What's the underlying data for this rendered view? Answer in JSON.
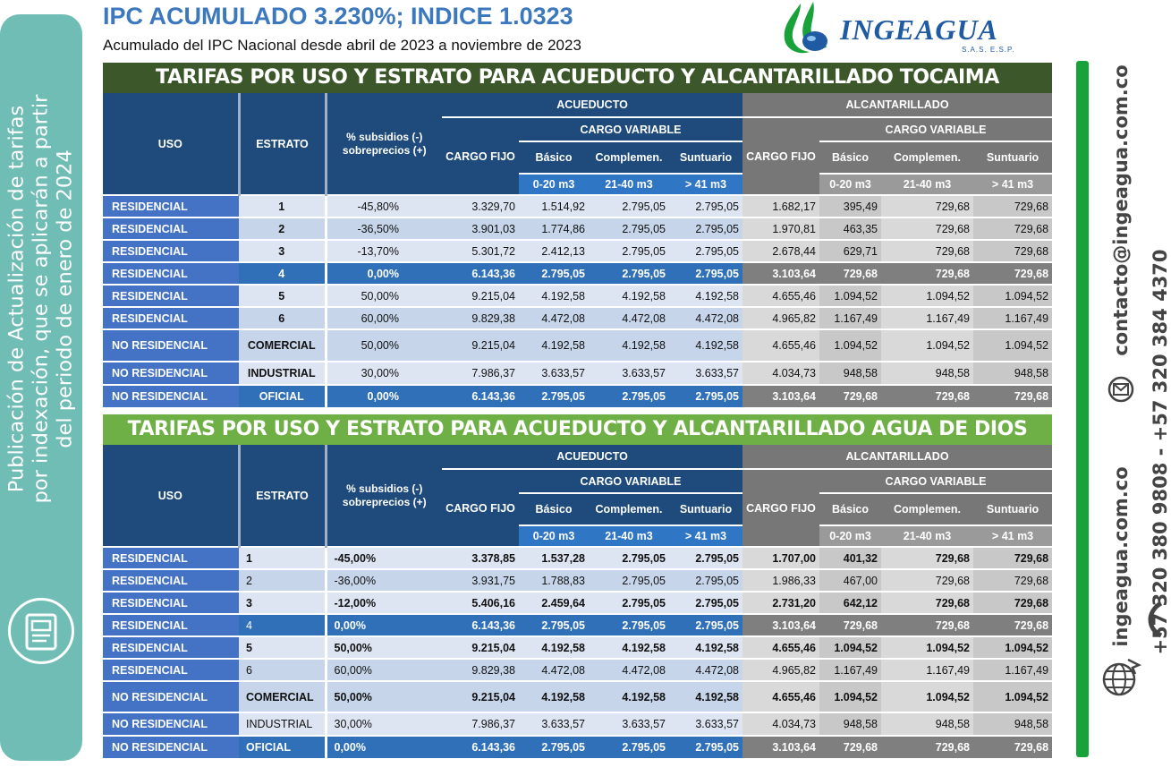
{
  "header": {
    "title": "IPC ACUMULADO 3.230%; INDICE 1.0323",
    "subtitle": "Acumulado del IPC Nacional desde abril de 2023 a noviembre de 2023"
  },
  "logo": {
    "name": "INGEAGUA",
    "tag": "S.A.S.  E.S.P."
  },
  "side_panel": {
    "text_lines": [
      "Publicación de Actualización de tarifas",
      "por indexación, que se aplicarán a partir",
      "del periodo de enero de 2024"
    ]
  },
  "contact": {
    "email": "contacto@ingeagua.com.co",
    "website": "ingeagua.com.co",
    "phones": "+57 320 380 9808 - +57 320 384 4370"
  },
  "colors": {
    "accent_blue": "#3b78be",
    "banner1": "#3c5729",
    "banner2": "#6fb046",
    "side_green": "#17a33a",
    "panel_teal": "#6fbdb4"
  },
  "table_headers": {
    "uso": "USO",
    "estrato": "ESTRATO",
    "subsidios": "% subsidios (-) sobreprecios (+)",
    "acueducto": "ACUEDUCTO",
    "alcantarillado": "ALCANTARILLADO",
    "cargo_variable": "CARGO VARIABLE",
    "cargo_fijo": "CARGO FIJO",
    "basico": "Básico",
    "complemen": "Complemen.",
    "suntuario": "Suntuario",
    "r1": "0-20 m3",
    "r2": "21-40 m3",
    "r3": "> 41 m3"
  },
  "tables": [
    {
      "title": "TARIFAS POR USO Y ESTRATO PARA ACUEDUCTO Y ALCANTARILLADO  TOCAIMA",
      "rows": [
        [
          "RESIDENCIAL",
          "1",
          "-45,80%",
          "3.329,70",
          "1.514,92",
          "2.795,05",
          "2.795,05",
          "1.682,17",
          "395,49",
          "729,68",
          "729,68"
        ],
        [
          "RESIDENCIAL",
          "2",
          "-36,50%",
          "3.901,03",
          "1.774,86",
          "2.795,05",
          "2.795,05",
          "1.970,81",
          "463,35",
          "729,68",
          "729,68"
        ],
        [
          "RESIDENCIAL",
          "3",
          "-13,70%",
          "5.301,72",
          "2.412,13",
          "2.795,05",
          "2.795,05",
          "2.678,44",
          "629,71",
          "729,68",
          "729,68"
        ],
        [
          "RESIDENCIAL",
          "4",
          "0,00%",
          "6.143,36",
          "2.795,05",
          "2.795,05",
          "2.795,05",
          "3.103,64",
          "729,68",
          "729,68",
          "729,68"
        ],
        [
          "RESIDENCIAL",
          "5",
          "50,00%",
          "9.215,04",
          "4.192,58",
          "4.192,58",
          "4.192,58",
          "4.655,46",
          "1.094,52",
          "1.094,52",
          "1.094,52"
        ],
        [
          "RESIDENCIAL",
          "6",
          "60,00%",
          "9.829,38",
          "4.472,08",
          "4.472,08",
          "4.472,08",
          "4.965,82",
          "1.167,49",
          "1.167,49",
          "1.167,49"
        ],
        [
          "NO RESIDENCIAL",
          "COMERCIAL",
          "50,00%",
          "9.215,04",
          "4.192,58",
          "4.192,58",
          "4.192,58",
          "4.655,46",
          "1.094,52",
          "1.094,52",
          "1.094,52"
        ],
        [
          "NO RESIDENCIAL",
          "INDUSTRIAL",
          "30,00%",
          "7.986,37",
          "3.633,57",
          "3.633,57",
          "3.633,57",
          "4.034,73",
          "948,58",
          "948,58",
          "948,58"
        ],
        [
          "NO RESIDENCIAL",
          "OFICIAL",
          "0,00%",
          "6.143,36",
          "2.795,05",
          "2.795,05",
          "2.795,05",
          "3.103,64",
          "729,68",
          "729,68",
          "729,68"
        ]
      ]
    },
    {
      "title": "TARIFAS POR USO Y ESTRATO PARA ACUEDUCTO Y ALCANTARILLADO AGUA DE DIOS",
      "rows": [
        [
          "RESIDENCIAL",
          "1",
          "-45,00%",
          "3.378,85",
          "1.537,28",
          "2.795,05",
          "2.795,05",
          "1.707,00",
          "401,32",
          "729,68",
          "729,68"
        ],
        [
          "RESIDENCIAL",
          "2",
          "-36,00%",
          "3.931,75",
          "1.788,83",
          "2.795,05",
          "2.795,05",
          "1.986,33",
          "467,00",
          "729,68",
          "729,68"
        ],
        [
          "RESIDENCIAL",
          "3",
          "-12,00%",
          "5.406,16",
          "2.459,64",
          "2.795,05",
          "2.795,05",
          "2.731,20",
          "642,12",
          "729,68",
          "729,68"
        ],
        [
          "RESIDENCIAL",
          "4",
          "0,00%",
          "6.143,36",
          "2.795,05",
          "2.795,05",
          "2.795,05",
          "3.103,64",
          "729,68",
          "729,68",
          "729,68"
        ],
        [
          "RESIDENCIAL",
          "5",
          "50,00%",
          "9.215,04",
          "4.192,58",
          "4.192,58",
          "4.192,58",
          "4.655,46",
          "1.094,52",
          "1.094,52",
          "1.094,52"
        ],
        [
          "RESIDENCIAL",
          "6",
          "60,00%",
          "9.829,38",
          "4.472,08",
          "4.472,08",
          "4.472,08",
          "4.965,82",
          "1.167,49",
          "1.167,49",
          "1.167,49"
        ],
        [
          "NO RESIDENCIAL",
          "COMERCIAL",
          "50,00%",
          "9.215,04",
          "4.192,58",
          "4.192,58",
          "4.192,58",
          "4.655,46",
          "1.094,52",
          "1.094,52",
          "1.094,52"
        ],
        [
          "NO RESIDENCIAL",
          "INDUSTRIAL",
          "30,00%",
          "7.986,37",
          "3.633,57",
          "3.633,57",
          "3.633,57",
          "4.034,73",
          "948,58",
          "948,58",
          "948,58"
        ],
        [
          "NO RESIDENCIAL",
          "OFICIAL",
          "0,00%",
          "6.143,36",
          "2.795,05",
          "2.795,05",
          "2.795,05",
          "3.103,64",
          "729,68",
          "729,68",
          "729,68"
        ]
      ]
    }
  ]
}
